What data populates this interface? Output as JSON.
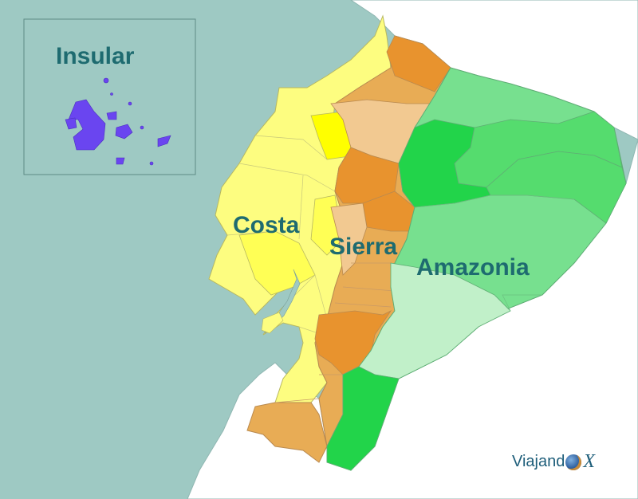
{
  "map": {
    "regions": {
      "insular": "Insular",
      "costa": "Costa",
      "sierra": "Sierra",
      "amazonia": "Amazonia"
    },
    "colors": {
      "sea": "#9ec9c3",
      "neighbor_land": "#ffffff",
      "border": "#7a9f9a",
      "label": "#1e6b70",
      "galapagos": "#6a45f0",
      "costa_light": "#fdfd80",
      "costa_mid": "#ffff55",
      "costa_bright": "#ffff00",
      "sierra_dark": "#e8932e",
      "sierra_mid": "#e8ac55",
      "sierra_light": "#f2c991",
      "amazon_bright": "#22d44a",
      "amazon_mid": "#55dc6e",
      "amazon_light": "#77e08f",
      "amazon_pale": "#c1f0c9"
    }
  },
  "brand": {
    "name": "Viajand",
    "suffix": "X"
  }
}
